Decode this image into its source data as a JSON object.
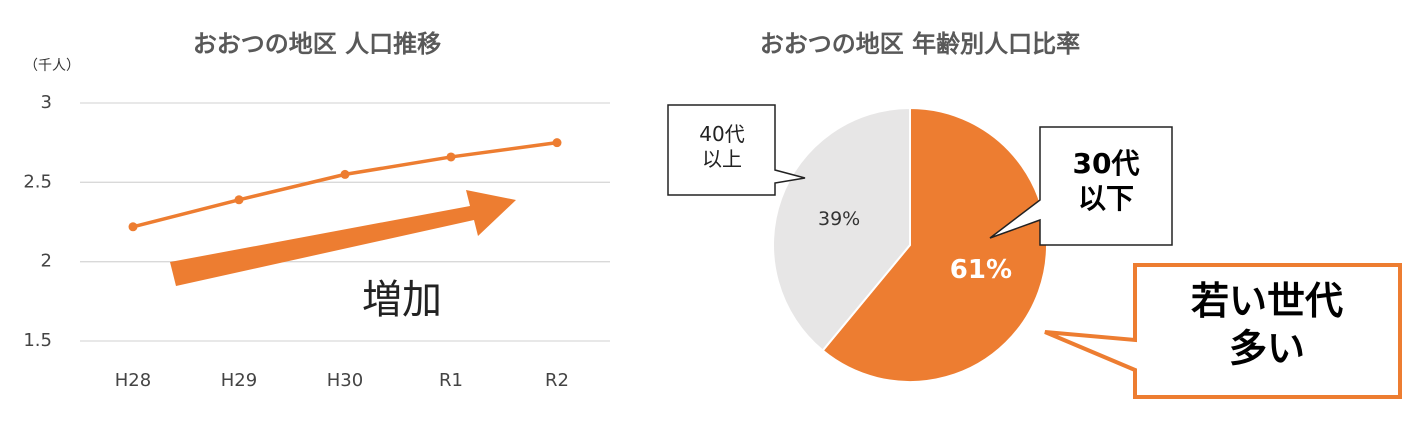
{
  "chart_data": [
    {
      "type": "line",
      "title": "おおつの地区 人口推移",
      "y_label": "（千人）",
      "categories": [
        "H28",
        "H29",
        "H30",
        "R1",
        "R2"
      ],
      "values": [
        2.22,
        2.39,
        2.55,
        2.66,
        2.75
      ],
      "color": "#ED7D31",
      "ylim": [
        1.5,
        3
      ],
      "yticks": [
        1.5,
        2,
        2.5,
        3
      ],
      "grid": true,
      "annotation": "増加"
    },
    {
      "type": "pie",
      "title": "おおつの地区 年齢別人口比率",
      "categories": [
        "30代\n以下",
        "40代\n以上"
      ],
      "values": [
        61,
        39
      ],
      "value_labels": [
        "61%",
        "39%"
      ],
      "colors": [
        "#ED7D31",
        "#E7E6E6"
      ],
      "annotation": "若い世代\n多い"
    }
  ]
}
